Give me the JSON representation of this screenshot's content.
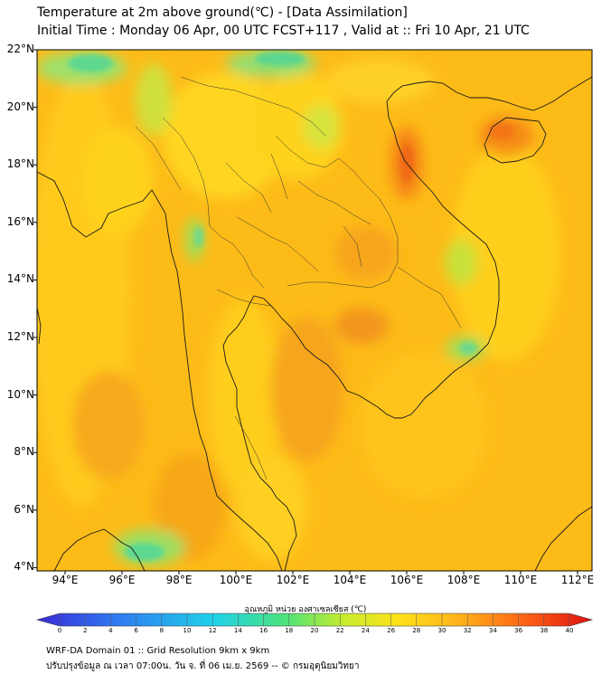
{
  "title_line1": "Temperature at 2m above ground(℃) - [Data Assimilation]",
  "title_line2": "Initial Time : Monday 06 Apr, 00 UTC FCST+117 , Valid at :: Fri 10 Apr, 21 UTC",
  "lat_labels": [
    "22°N",
    "20°N",
    "18°N",
    "16°N",
    "14°N",
    "12°N",
    "10°N",
    "8°N",
    "6°N",
    "4°N"
  ],
  "lon_labels": [
    "94°E",
    "96°E",
    "98°E",
    "100°E",
    "102°E",
    "104°E",
    "106°E",
    "108°E",
    "110°E",
    "112°E"
  ],
  "colorbar": {
    "title": "อุณหภูมิ หน่วย องศาเซลเซียส (℃)",
    "ticks": [
      "0",
      "2",
      "4",
      "6",
      "8",
      "10",
      "12",
      "14",
      "16",
      "18",
      "20",
      "22",
      "24",
      "26",
      "28",
      "30",
      "32",
      "34",
      "36",
      "38",
      "40"
    ],
    "min": 0,
    "max": 40
  },
  "footer_line1": "WRF-DA Domain 01 :: Grid Resolution 9km x 9km",
  "footer_line2": "ปรับปรุงข้อมูล ณ เวลา 07:00น. วัน จ. ที่ 06 เม.ย. 2569 -- © กรมอุตุนิยมวิทยา"
}
